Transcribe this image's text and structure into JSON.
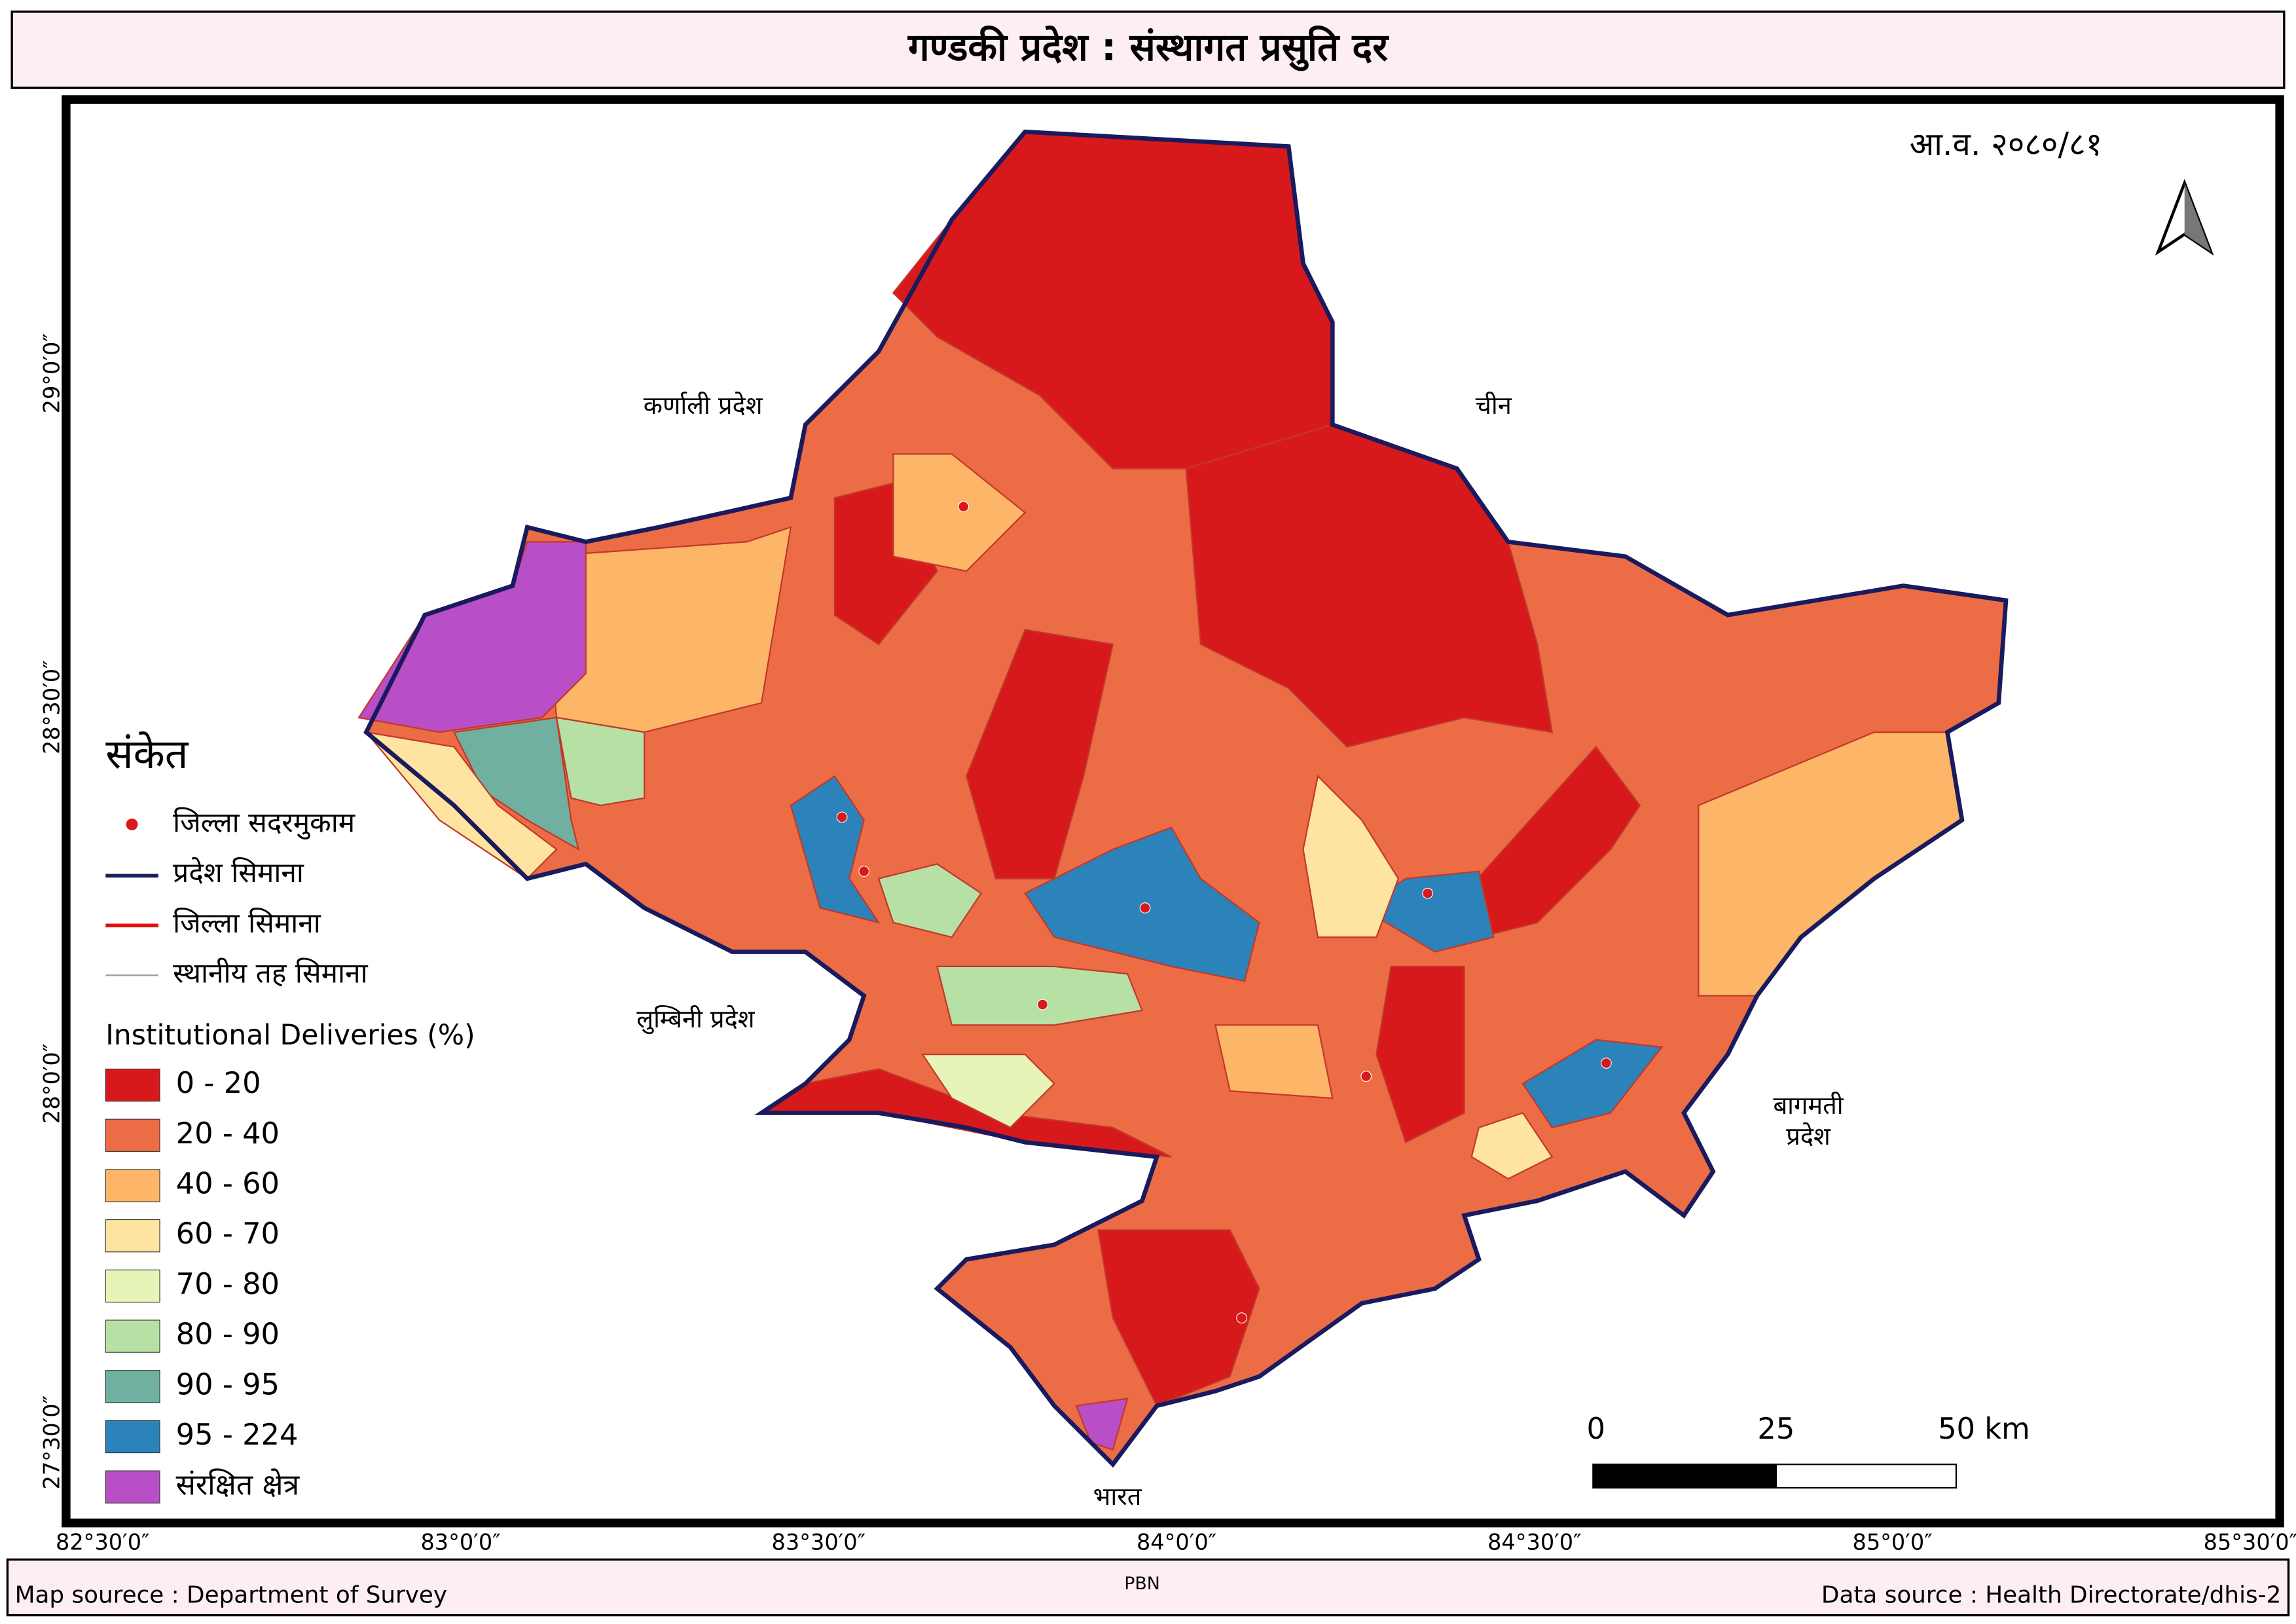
{
  "header": {
    "title": "गण्डकी प्रदेश : संस्थागत प्रसुति दर"
  },
  "map": {
    "fiscal_year": "आ.व. २०८०/८१",
    "neighbors": [
      "कर्णाली प्रदेश",
      "चीन",
      "लुम्बिनी प्रदेश",
      "बागमती",
      "प्रदेश",
      "भारत"
    ],
    "lat_labels": [
      "29°0′0″",
      "28°30′0″",
      "28°0′0″",
      "27°30′0″"
    ],
    "lon_labels": [
      "82°30′0″",
      "83°0′0″",
      "83°30′0″",
      "84°0′0″",
      "84°30′0″",
      "85°0′0″",
      "85°30′0″"
    ],
    "scale_labels": [
      "0",
      "25",
      "50 km"
    ]
  },
  "legend": {
    "title": "संकेत",
    "symbols": [
      "जिल्ला सदरमुकाम",
      "प्रदेश सिमाना",
      "जिल्ला सिमाना",
      "स्थानीय तह सिमाना"
    ],
    "classes_title": "Institutional Deliveries (%)",
    "classes": [
      {
        "label": "0 - 20",
        "color": "#d7191c"
      },
      {
        "label": "20 - 40",
        "color": "#ec6d45"
      },
      {
        "label": "40 - 60",
        "color": "#fdb567"
      },
      {
        "label": "60 - 70",
        "color": "#fee4a0"
      },
      {
        "label": "70 - 80",
        "color": "#e6f5b7"
      },
      {
        "label": "80 - 90",
        "color": "#b6e0a4"
      },
      {
        "label": "90 - 95",
        "color": "#6fb0a0"
      },
      {
        "label": "95 - 224",
        "color": "#2b83ba"
      },
      {
        "label": "संरक्षित क्षेत्र",
        "color": "#b84fc6"
      }
    ]
  },
  "footer": {
    "left": "Map sourece : Department of Survey",
    "center": "PBN",
    "right": "Data source : Health Directorate/dhis-2"
  }
}
